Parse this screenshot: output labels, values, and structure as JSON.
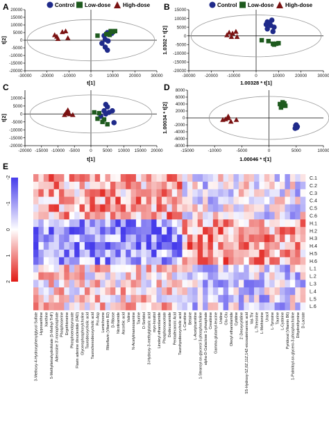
{
  "panel_labels": {
    "A": "A",
    "B": "B",
    "C": "C",
    "D": "D",
    "E": "E"
  },
  "legend": {
    "control": "Control",
    "low": "Low-dose",
    "high": "High-dose",
    "colors": {
      "control": "#1f2a8a",
      "low": "#1e5a1e",
      "high": "#7a1212"
    }
  },
  "chart_data": [
    {
      "panel": "A",
      "type": "scatter",
      "xlabel": "t[1]",
      "ylabel": "t[2]",
      "xlim": [
        -30000,
        30000
      ],
      "ylim": [
        -20000,
        20000
      ],
      "xticks": [
        "-30000",
        "-20000",
        "-10000",
        "0",
        "10000",
        "20000",
        "30000"
      ],
      "yticks": [
        "20000",
        "15000",
        "10000",
        "5000",
        "0",
        "-5000",
        "-10000",
        "-15000",
        "-20000"
      ],
      "ellipse": {
        "cx": 0,
        "cy": 0,
        "rx": 29000,
        "ry": 13500
      },
      "series": [
        {
          "name": "Control",
          "points": [
            [
              7500,
              5000
            ],
            [
              9500,
              4500
            ],
            [
              6000,
              3000
            ],
            [
              6500,
              500
            ],
            [
              7800,
              -500
            ],
            [
              5000,
              -2000
            ],
            [
              6500,
              -4500
            ],
            [
              7500,
              -6500
            ]
          ]
        },
        {
          "name": "Low-dose",
          "points": [
            [
              3000,
              3000
            ],
            [
              10000,
              5500
            ],
            [
              7000,
              4000
            ],
            [
              9000,
              6000
            ],
            [
              8500,
              3500
            ],
            [
              11000,
              6000
            ]
          ]
        },
        {
          "name": "High-dose",
          "points": [
            [
              -11500,
              6000
            ],
            [
              -13000,
              5500
            ],
            [
              -16500,
              3500
            ],
            [
              -15500,
              2500
            ],
            [
              -10500,
              1500
            ],
            [
              -15000,
              1000
            ]
          ]
        }
      ]
    },
    {
      "panel": "B",
      "type": "scatter",
      "xlabel": "1.00328 * t[1]",
      "ylabel": "1.0302 * t[2]",
      "xlim": [
        -30000,
        30000
      ],
      "ylim": [
        -20000,
        15000
      ],
      "xticks": [
        "-30000",
        "-20000",
        "-10000",
        "0",
        "10000",
        "20000",
        "30000"
      ],
      "yticks": [
        "15000",
        "10000",
        "5000",
        "0",
        "-5000",
        "-10000",
        "-15000",
        "-20000"
      ],
      "ellipse": {
        "cx": 0,
        "cy": 0,
        "rx": 29000,
        "ry": 12000
      },
      "series": [
        {
          "name": "Control",
          "points": [
            [
              5000,
              8000
            ],
            [
              7000,
              9000
            ],
            [
              4500,
              6500
            ],
            [
              6500,
              6000
            ],
            [
              8000,
              5000
            ],
            [
              5000,
              4000
            ],
            [
              7500,
              2500
            ],
            [
              6000,
              7500
            ]
          ]
        },
        {
          "name": "Low-dose",
          "points": [
            [
              2500,
              -2500
            ],
            [
              5500,
              -3000
            ],
            [
              7500,
              -4500
            ],
            [
              9000,
              -4500
            ],
            [
              8000,
              -5000
            ],
            [
              10000,
              -4200
            ]
          ]
        },
        {
          "name": "High-dose",
          "points": [
            [
              -9000,
              2500
            ],
            [
              -10500,
              1500
            ],
            [
              -12000,
              2000
            ],
            [
              -11000,
              -500
            ],
            [
              -13000,
              500
            ],
            [
              -8500,
              -500
            ]
          ]
        }
      ]
    },
    {
      "panel": "C",
      "type": "scatter",
      "xlabel": "t[1]",
      "ylabel": "t[2]",
      "xlim": [
        -20000,
        20000
      ],
      "ylim": [
        -20000,
        15000
      ],
      "xticks": [
        "-20000",
        "-15000",
        "-10000",
        "-5000",
        "0",
        "5000",
        "10000",
        "15000",
        "20000"
      ],
      "yticks": [
        "10000",
        "5000",
        "0",
        "-5000",
        "-10000",
        "-15000",
        "-20000"
      ],
      "ellipse": {
        "cx": 0,
        "cy": 0,
        "rx": 18500,
        "ry": 12000
      },
      "series": [
        {
          "name": "Control",
          "points": [
            [
              4500,
              6000
            ],
            [
              5000,
              4500
            ],
            [
              4000,
              2000
            ],
            [
              6500,
              2000
            ],
            [
              3000,
              -1500
            ],
            [
              7000,
              -5500
            ],
            [
              4500,
              0
            ],
            [
              5500,
              1000
            ]
          ]
        },
        {
          "name": "Low-dose",
          "points": [
            [
              1000,
              1000
            ],
            [
              2500,
              500
            ],
            [
              2000,
              -3000
            ],
            [
              4000,
              -3500
            ],
            [
              5000,
              -6500
            ],
            [
              3500,
              -5000
            ]
          ]
        },
        {
          "name": "High-dose",
          "points": [
            [
              -7000,
              2500
            ],
            [
              -7500,
              1000
            ],
            [
              -6500,
              0
            ],
            [
              -8000,
              -500
            ],
            [
              -5500,
              -500
            ],
            [
              -7000,
              500
            ]
          ]
        }
      ]
    },
    {
      "panel": "D",
      "type": "scatter",
      "xlabel": "1.00046 * t[1]",
      "ylabel": "1.00034 * t[2]",
      "xlim": [
        -15000,
        10000
      ],
      "ylim": [
        -8000,
        8000
      ],
      "xticks": [
        "-15000",
        "-10000",
        "-5000",
        "0",
        "5000",
        "10000"
      ],
      "yticks": [
        "8000",
        "6000",
        "4000",
        "2000",
        "0",
        "-2000",
        "-4000",
        "-6000",
        "-8000"
      ],
      "ellipse": {
        "cx": 0,
        "cy": 0,
        "rx": 11000,
        "ry": 6200
      },
      "series": [
        {
          "name": "Control",
          "points": [
            [
              5000,
              -2000
            ],
            [
              5200,
              -2500
            ],
            [
              4800,
              -3000
            ],
            [
              5100,
              -2800
            ],
            [
              4900,
              -2200
            ],
            [
              5000,
              -2600
            ]
          ]
        },
        {
          "name": "Low-dose",
          "points": [
            [
              2000,
              4000
            ],
            [
              2500,
              4500
            ],
            [
              3000,
              3500
            ],
            [
              2200,
              3000
            ],
            [
              2800,
              4200
            ],
            [
              2400,
              3800
            ]
          ]
        },
        {
          "name": "High-dose",
          "points": [
            [
              -8500,
              -500
            ],
            [
              -7500,
              0
            ],
            [
              -7000,
              -1000
            ],
            [
              -6000,
              -500
            ],
            [
              -7500,
              500
            ],
            [
              -8000,
              -300
            ]
          ]
        }
      ]
    },
    {
      "panel": "E",
      "type": "heatmap",
      "rows": [
        "C.1",
        "C.2",
        "C.3",
        "C.4",
        "C.5",
        "C.6",
        "H.1",
        "H.2",
        "H.3",
        "H.4",
        "H.5",
        "H.6",
        "L.1",
        "L.2",
        "L.3",
        "L.4",
        "L.5",
        "L.6"
      ],
      "columns": [
        "3-Methoxy-4-Hydroxyphenylglycol Sulfate",
        "Hypoxanthine",
        "Xanthine",
        "5-Methyltetrahydrofolate (5-Methyl-THF)",
        "Adenosine 3'-monophosphate",
        "Phosphoserine",
        "Ergothioneine",
        "Phosphoenolpyruvate",
        "Flavin adenine dinucleotide (FAD)",
        "Glycerophosphorylcholine",
        "Taurodeoxycholic acid",
        "Taurochenodeoxycholic acid",
        "Pro-Asp",
        "Lumichrome",
        "Riboflavin (Vitamin B2)",
        "D-Ribose",
        "Nicotinamide",
        "Ascorbic acid",
        "Valine",
        "N-Acetylmannosamine",
        "Taurine",
        "D-Sorbitol",
        "3-Hydroxy-3-methylglutaric acid",
        "myo-Inositol",
        "Linoleyl ethanolamide",
        "Phosphonoacetate",
        "Dodecanamide",
        "Pentadecanoic Acid",
        "Taurohyodeoxycholic acid",
        "L-Carnitine",
        "Betaine",
        "L-Acetylcarnitine",
        "1-Stearoyl-sn-glycerol 3-phosphocholine",
        "alpha-D-Galactose 1-phosphate",
        "Creatinine",
        "Gamma-glutamyl-leucine",
        "Uridine",
        "Glu-Glu",
        "Oleoyl ethanolamide",
        "Cytidine",
        "2'-Deoxycytidine",
        "5S-Hydroxy-5Z,8Z,11Z,14Z-eicosatetraenoic acid",
        "Val-Thr",
        "L-Threonine",
        "L-Methionine",
        "Uracil",
        "L-Tyrosine",
        "Taurine",
        "L-Cysteine",
        "Pyridoxal (Vitamin B6)",
        "1-Palmitoyl-sn-glycero-3-phosphocholine",
        "Dihydrothymine",
        "D-Lactate"
      ],
      "colorbar_ticks": [
        "-2",
        "-1",
        "0",
        "1",
        "2"
      ],
      "value_range": [
        -2,
        2
      ],
      "value_groups": [
        {
          "rows": [
            "C.1",
            "C.2",
            "C.3",
            "C.4",
            "C.5",
            "C.6"
          ],
          "mean_first": 0.7,
          "mean_second": -0.2
        },
        {
          "rows": [
            "H.1",
            "H.2",
            "H.3",
            "H.4",
            "H.5",
            "H.6"
          ],
          "mean_first": -1.1,
          "mean_second": 0.8
        },
        {
          "rows": [
            "L.1",
            "L.2",
            "L.3",
            "L.4",
            "L.5",
            "L.6"
          ],
          "mean_first": 0.3,
          "mean_second": -0.4
        }
      ]
    }
  ]
}
